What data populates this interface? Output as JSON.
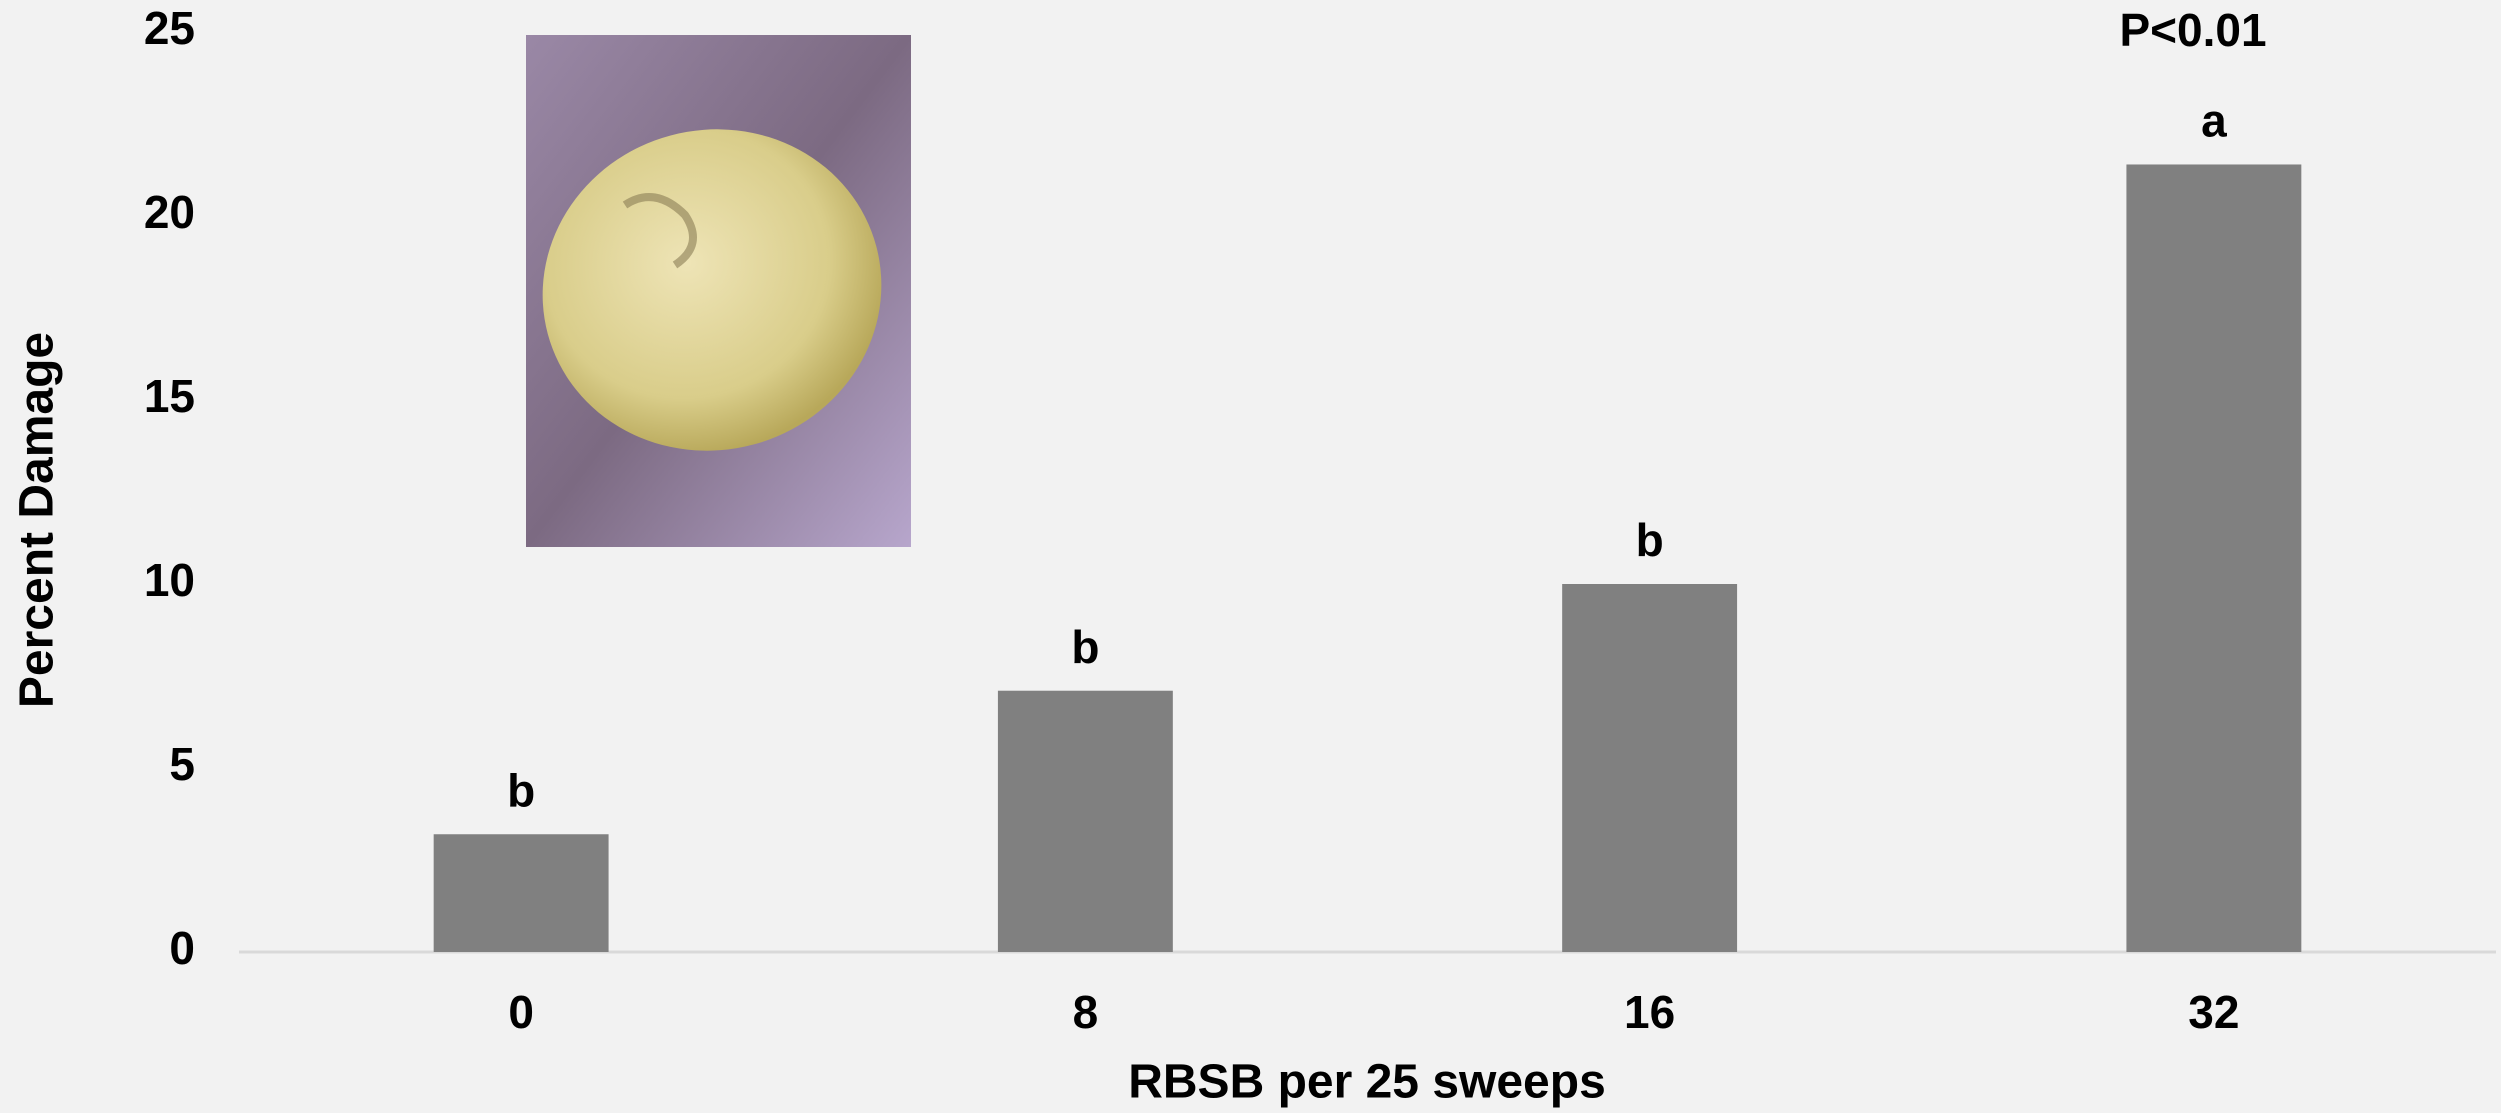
{
  "chart_data": {
    "type": "bar",
    "categories": [
      "0",
      "8",
      "16",
      "32"
    ],
    "values": [
      3.2,
      7.1,
      10.0,
      21.4
    ],
    "annotations": [
      "b",
      "b",
      "b",
      "a"
    ],
    "note": "P<0.01",
    "color": "#808080",
    "x_label": "RBSB per 25 sweeps",
    "y_label": "Percent Damage",
    "ylim": [
      0,
      25
    ],
    "yticks": [
      0,
      5,
      10,
      15,
      20,
      25
    ],
    "grid": false
  }
}
